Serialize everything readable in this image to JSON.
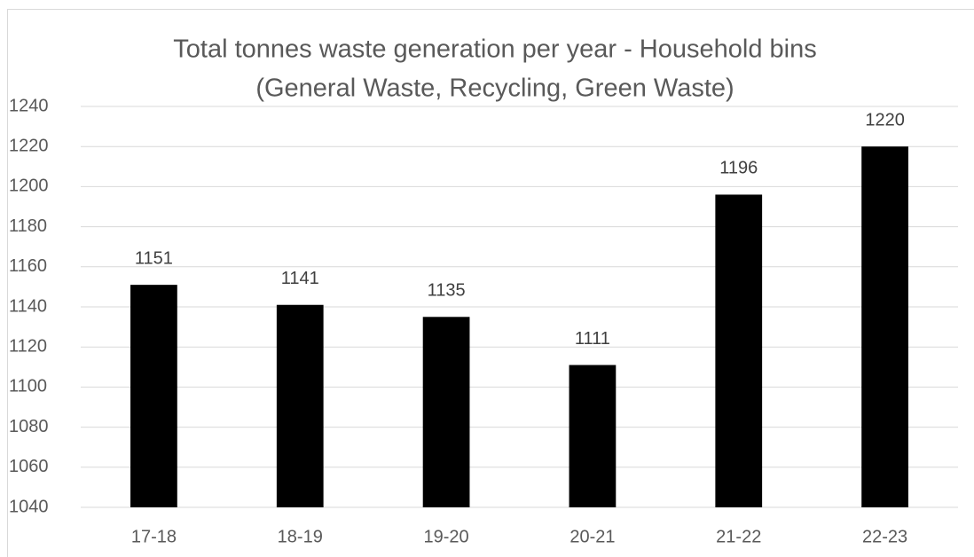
{
  "chart_data": {
    "type": "bar",
    "title": [
      "Total tonnes waste generation per year - Household bins",
      "(General Waste, Recycling, Green Waste)"
    ],
    "categories": [
      "17-18",
      "18-19",
      "19-20",
      "20-21",
      "21-22",
      "22-23"
    ],
    "values": [
      1151,
      1141,
      1135,
      1111,
      1196,
      1220
    ],
    "color": "#000000",
    "ylim": [
      1040,
      1240
    ],
    "yticks": [
      1040,
      1060,
      1080,
      1100,
      1120,
      1140,
      1160,
      1180,
      1200,
      1220,
      1240
    ],
    "grid": true
  }
}
